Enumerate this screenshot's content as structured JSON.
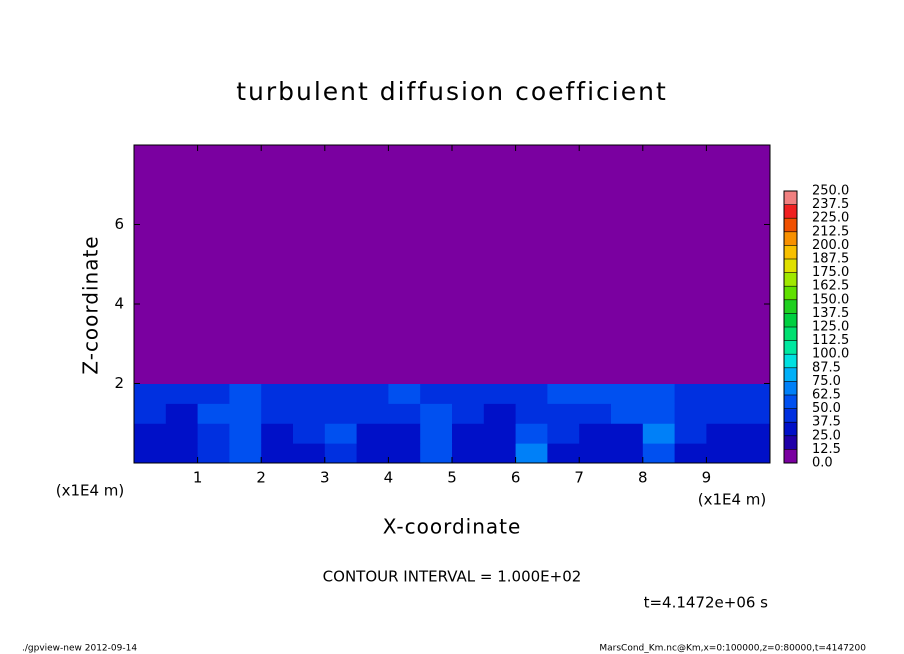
{
  "chart_data": {
    "type": "heatmap",
    "title": "turbulent diffusion coefficient",
    "xlabel": "X-coordinate",
    "ylabel": "Z-coordinate",
    "xunit": "(x1E4 m)",
    "yunit": "(x1E4 m)",
    "xlim": [
      0,
      10
    ],
    "ylim": [
      0,
      8
    ],
    "xticks": [
      1,
      2,
      3,
      4,
      5,
      6,
      7,
      8,
      9
    ],
    "yticks": [
      2,
      4,
      6
    ],
    "xbins": [
      0,
      0.5,
      1,
      1.5,
      2,
      2.5,
      3,
      3.5,
      4,
      4.5,
      5,
      5.5,
      6,
      6.5,
      7,
      7.5,
      8,
      8.5,
      9,
      9.5,
      10
    ],
    "ybins": [
      0,
      0.5,
      1,
      1.5,
      2,
      4,
      6,
      8
    ],
    "z": [
      [
        30,
        25,
        40,
        55,
        30,
        35,
        45,
        25,
        30,
        50,
        30,
        28,
        70,
        35,
        30,
        28,
        60,
        35,
        28,
        30
      ],
      [
        35,
        30,
        45,
        60,
        35,
        40,
        50,
        30,
        35,
        55,
        35,
        30,
        60,
        40,
        35,
        30,
        65,
        40,
        30,
        35
      ],
      [
        40,
        35,
        50,
        55,
        40,
        45,
        45,
        40,
        40,
        50,
        40,
        35,
        45,
        45,
        40,
        50,
        60,
        45,
        40,
        40
      ],
      [
        45,
        40,
        45,
        50,
        45,
        45,
        40,
        45,
        50,
        45,
        45,
        40,
        45,
        50,
        55,
        60,
        50,
        45,
        45,
        45
      ],
      [
        0,
        0,
        0,
        0,
        0,
        0,
        0,
        0,
        0,
        0,
        0,
        0,
        0,
        0,
        0,
        0,
        0,
        0,
        0,
        0
      ],
      [
        0,
        0,
        0,
        0,
        0,
        0,
        0,
        0,
        0,
        0,
        0,
        0,
        0,
        0,
        0,
        0,
        0,
        0,
        0,
        0
      ],
      [
        0,
        0,
        0,
        0,
        0,
        0,
        0,
        0,
        0,
        0,
        0,
        0,
        0,
        0,
        0,
        0,
        0,
        0,
        0,
        0
      ]
    ],
    "colorbar": {
      "ticks": [
        {
          "value": 0,
          "label": "0.0"
        },
        {
          "value": 12.5,
          "label": "12.5"
        },
        {
          "value": 25,
          "label": "25.0"
        },
        {
          "value": 37.5,
          "label": "37.5"
        },
        {
          "value": 50,
          "label": "50.0"
        },
        {
          "value": 62.5,
          "label": "62.5"
        },
        {
          "value": 75,
          "label": "75.0"
        },
        {
          "value": 87.5,
          "label": "87.5"
        },
        {
          "value": 100,
          "label": "100.0"
        },
        {
          "value": 112.5,
          "label": "112.5"
        },
        {
          "value": 125,
          "label": "125.0"
        },
        {
          "value": 137.5,
          "label": "137.5"
        },
        {
          "value": 150,
          "label": "150.0"
        },
        {
          "value": 162.5,
          "label": "162.5"
        },
        {
          "value": 175,
          "label": "175.0"
        },
        {
          "value": 187.5,
          "label": "187.5"
        },
        {
          "value": 200,
          "label": "200.0"
        },
        {
          "value": 212.5,
          "label": "212.5"
        },
        {
          "value": 225,
          "label": "225.0"
        },
        {
          "value": 237.5,
          "label": "237.5"
        },
        {
          "value": 250,
          "label": "250.0"
        }
      ],
      "colors": [
        "#7a00a0",
        "#2000a8",
        "#0010c8",
        "#0030e0",
        "#0050f0",
        "#0080f8",
        "#00b0f8",
        "#00e0e0",
        "#00e8a0",
        "#00e070",
        "#00d040",
        "#20d020",
        "#60e000",
        "#a0e800",
        "#e0e000",
        "#f8c000",
        "#f89000",
        "#f05000",
        "#f02020",
        "#f08080"
      ]
    },
    "contour_interval": "CONTOUR INTERVAL = 1.000E+02",
    "time_label": "t=4.1472e+06 s",
    "footer_left": "./gpview-new  2012-09-14",
    "footer_right": "MarsCond_Km.nc@Km,x=0:100000,z=0:80000,t=4147200"
  }
}
